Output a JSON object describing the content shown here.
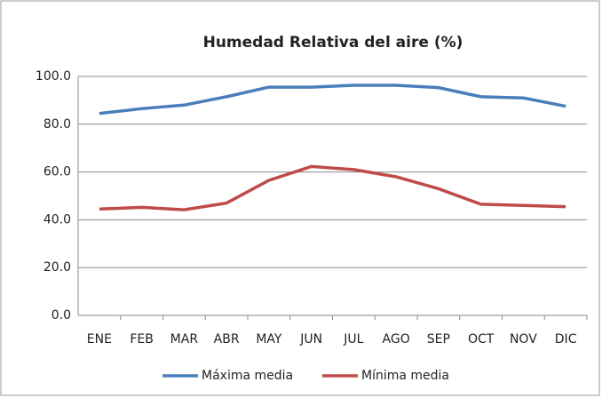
{
  "chart_data": {
    "type": "line",
    "title": "Humedad Relativa del aire (%)",
    "categories": [
      "ENE",
      "FEB",
      "MAR",
      "ABR",
      "MAY",
      "JUN",
      "JUL",
      "AGO",
      "SEP",
      "OCT",
      "NOV",
      "DIC"
    ],
    "series": [
      {
        "name": "Máxima media",
        "color": "#4a7ebb",
        "values": [
          84.5,
          86.5,
          88,
          91.5,
          95.5,
          95.5,
          96.3,
          96.3,
          95.3,
          91.5,
          91,
          87.5
        ]
      },
      {
        "name": "Mínima media",
        "color": "#be4b48",
        "values": [
          44.5,
          45.2,
          44.2,
          47,
          56.5,
          62.3,
          61,
          58,
          53,
          46.5,
          46,
          45.5
        ]
      }
    ],
    "ylim": [
      0,
      100
    ],
    "yticks": [
      {
        "value": 0,
        "label": "0.0"
      },
      {
        "value": 20,
        "label": "20.0"
      },
      {
        "value": 40,
        "label": "40.0"
      },
      {
        "value": 60,
        "label": "60.0"
      },
      {
        "value": 80,
        "label": "80.0"
      },
      {
        "value": 100,
        "label": "100.0"
      }
    ],
    "grid": true,
    "legend": "bottom"
  }
}
